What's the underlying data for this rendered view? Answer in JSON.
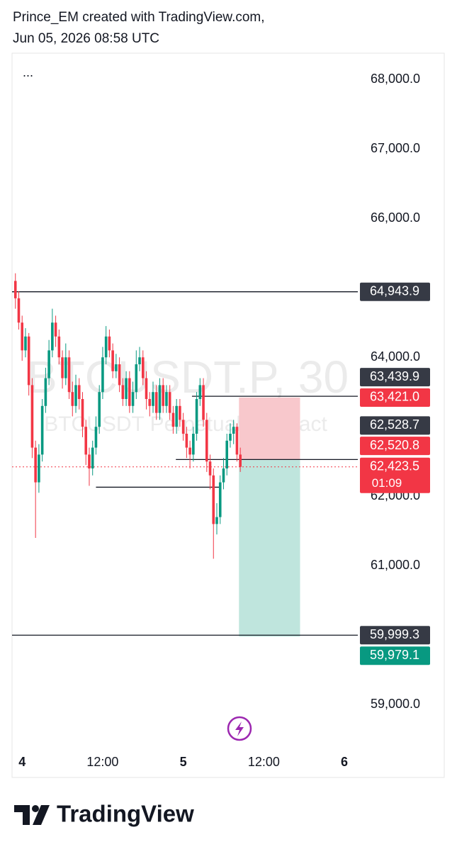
{
  "header": {
    "line1": "Prince_EM created with TradingView.com,",
    "line2": "Jun 05, 2026 08:58 UTC"
  },
  "chart_data": {
    "type": "candlestick",
    "watermark": "BTCUSDT.P, 30",
    "watermark_subtitle": "BTCUSDT Perpetual Contract",
    "x": [
      -1,
      -0.5,
      0,
      0.5,
      1,
      1.5,
      2,
      2.5,
      3,
      3.5,
      4,
      4.5,
      5,
      5.5,
      6,
      6.5,
      7,
      7.5,
      8,
      8.5,
      9,
      9.5,
      10,
      10.5,
      11,
      11.5,
      12,
      12.5,
      13,
      13.5,
      14,
      14.5,
      15,
      15.5,
      16,
      16.5,
      17,
      17.5,
      18,
      18.5,
      19,
      19.5,
      20,
      20.5,
      21,
      21.5,
      22,
      22.5,
      23,
      23.5,
      24,
      24.5,
      25,
      25.5,
      26,
      26.5,
      27,
      27.5,
      28,
      28.5,
      29,
      29.5,
      30,
      30.5,
      31,
      31.5,
      32,
      32.5
    ],
    "open": [
      65100,
      64850,
      64500,
      64100,
      64300,
      63600,
      62700,
      62200,
      62600,
      63300,
      63700,
      64100,
      64500,
      64300,
      64000,
      63700,
      64000,
      63500,
      63300,
      63600,
      63400,
      63000,
      62600,
      62400,
      62700,
      63000,
      63500,
      64000,
      64300,
      64100,
      63800,
      63900,
      63600,
      63400,
      63700,
      63300,
      63500,
      63900,
      64000,
      63700,
      63400,
      63300,
      63500,
      63200,
      63600,
      63300,
      63500,
      63200,
      63000,
      63300,
      63100,
      62900,
      62700,
      62600,
      62900,
      63400,
      63600,
      63100,
      62500,
      62300,
      61600,
      61700,
      62200,
      62400,
      62800,
      62900,
      63000,
      62600
    ],
    "high": [
      65210,
      64950,
      64600,
      64420,
      64350,
      63700,
      62800,
      62750,
      63400,
      63850,
      64250,
      64700,
      64600,
      64400,
      64100,
      64200,
      64100,
      63650,
      63750,
      63700,
      63500,
      63100,
      62700,
      62800,
      63150,
      63600,
      64150,
      64450,
      64400,
      64200,
      64050,
      64000,
      63700,
      63800,
      63800,
      63650,
      64100,
      64150,
      64100,
      63800,
      63500,
      63650,
      63600,
      63700,
      63700,
      63600,
      63600,
      63300,
      63400,
      63400,
      63200,
      63000,
      62800,
      63000,
      63500,
      63700,
      63700,
      63200,
      62600,
      62400,
      61900,
      62300,
      62550,
      62900,
      63050,
      63100,
      63050,
      62700
    ],
    "low": [
      64700,
      64400,
      63950,
      64000,
      63450,
      62550,
      61400,
      62050,
      62500,
      63200,
      63600,
      64000,
      64150,
      63900,
      63550,
      63600,
      63400,
      63150,
      63200,
      63250,
      62850,
      62450,
      62150,
      62300,
      62600,
      62900,
      63400,
      63900,
      64000,
      63700,
      63700,
      63500,
      63300,
      63300,
      63200,
      63200,
      63400,
      63800,
      63600,
      63250,
      63150,
      63200,
      63100,
      63100,
      63200,
      63200,
      63100,
      62900,
      62900,
      63000,
      62800,
      62550,
      62400,
      62500,
      62800,
      63300,
      63000,
      62350,
      62100,
      61100,
      61450,
      61600,
      62100,
      62300,
      62700,
      62750,
      62500,
      62350
    ],
    "close": [
      64850,
      64500,
      64100,
      64300,
      63600,
      62700,
      62200,
      62600,
      63300,
      63700,
      64100,
      64500,
      64300,
      64000,
      63700,
      64000,
      63500,
      63300,
      63600,
      63400,
      63000,
      62600,
      62400,
      62700,
      63000,
      63500,
      64000,
      64300,
      64100,
      63800,
      63900,
      63600,
      63400,
      63700,
      63300,
      63500,
      63900,
      64000,
      63700,
      63400,
      63300,
      63500,
      63200,
      63600,
      63300,
      63500,
      63200,
      63000,
      63300,
      63100,
      62900,
      62700,
      62600,
      62900,
      63400,
      63600,
      63100,
      62500,
      62300,
      61600,
      61700,
      62200,
      62400,
      62800,
      62900,
      63000,
      62600,
      62423.5
    ],
    "up_color": "#089981",
    "down_color": "#f23645",
    "xlim": [
      -1.5,
      50
    ],
    "xticks": [
      {
        "value": 0,
        "label": "4"
      },
      {
        "value": 12,
        "label": "12:00"
      },
      {
        "value": 24,
        "label": "5"
      },
      {
        "value": 36,
        "label": "12:00"
      },
      {
        "value": 48,
        "label": "6"
      }
    ],
    "ylim": [
      58400,
      68400
    ],
    "yticks": [
      {
        "value": 59000,
        "label": "59,000.0"
      },
      {
        "value": 61000,
        "label": "61,000.0"
      },
      {
        "value": 62000,
        "label": "62,000.0"
      },
      {
        "value": 64000,
        "label": "64,000.0"
      },
      {
        "value": 66000,
        "label": "66,000.0"
      },
      {
        "value": 67000,
        "label": "67,000.0"
      },
      {
        "value": 68000,
        "label": "68,000.0"
      }
    ],
    "horizontal_lines": [
      {
        "value": 64943.9,
        "label": "64,943.9",
        "start": -1.5
      },
      {
        "value": 63439.9,
        "label": "63,439.9",
        "start": 25.3
      },
      {
        "value": 62528.7,
        "label": "62,528.7",
        "start": 22.9
      },
      {
        "value": 59999.3,
        "label": "59,999.3",
        "start": -1.5
      }
    ],
    "segments": [
      {
        "value": 62130,
        "start": 11,
        "end": 29.5
      }
    ],
    "position": {
      "start": 32.3,
      "end": 41.4,
      "entry": {
        "value": 62520.8,
        "label": "62,520.8"
      },
      "stop": {
        "value": 63421.0,
        "label": "63,421.0"
      },
      "target": {
        "value": 59979.1,
        "label": "59,979.1"
      }
    },
    "last_price": {
      "value": 62423.5,
      "label": "62,423.5",
      "countdown": "01:09"
    }
  },
  "footer": {
    "brand": "TradingView"
  }
}
